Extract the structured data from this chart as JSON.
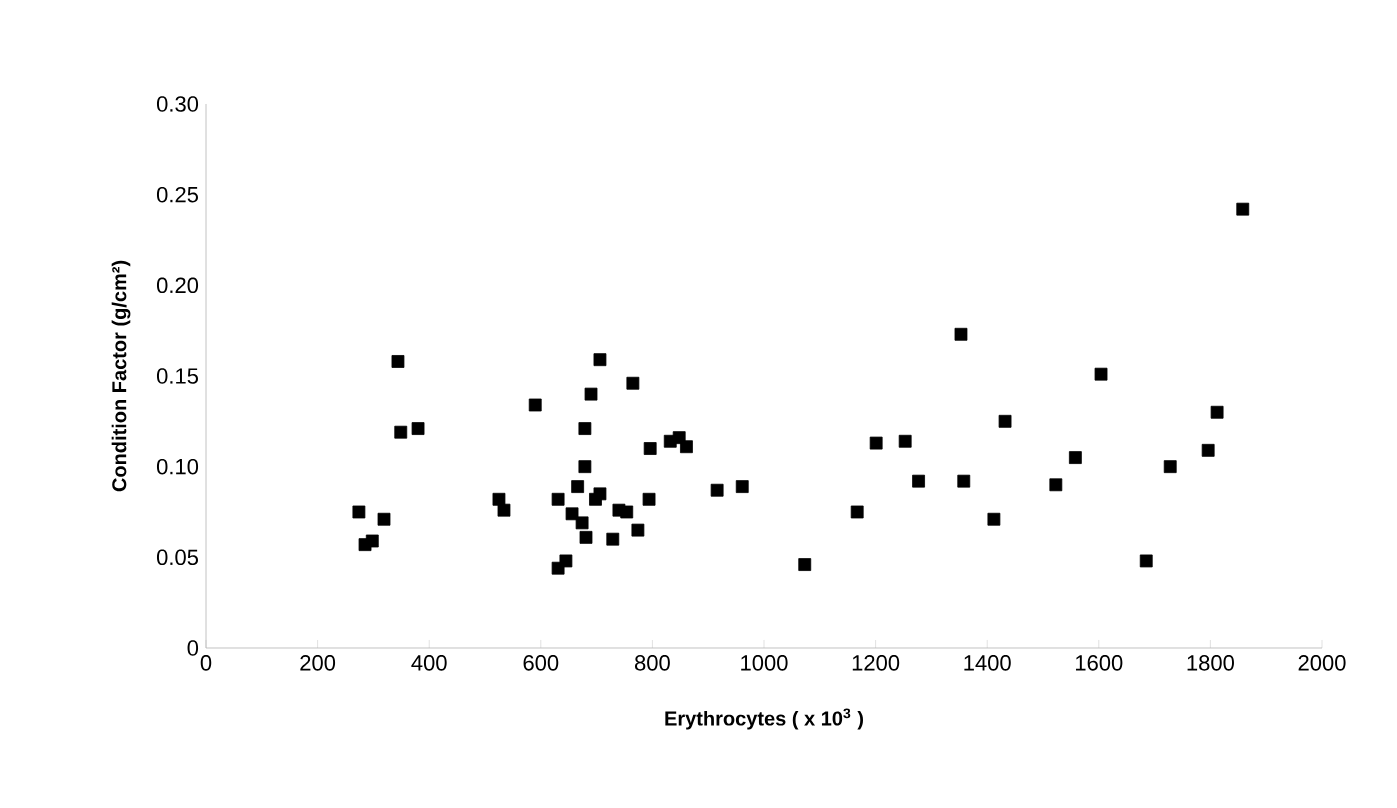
{
  "chart_data": {
    "type": "scatter",
    "xlabel": "Erythrocytes ( x 10$^{3}$ )",
    "ylabel": "Condition Factor (g/cm²)",
    "marker": "square",
    "grid": false,
    "xlim": [
      0,
      2000
    ],
    "xticks": [
      0,
      200,
      400,
      600,
      800,
      1000,
      1200,
      1400,
      1600,
      1800,
      2000
    ],
    "ylim": [
      0,
      0.3
    ],
    "yticks": [
      0,
      0.05,
      {
        "value": 0.1,
        "label": "0.10"
      },
      0.15,
      {
        "value": 0.2,
        "label": "0.20"
      },
      0.25,
      {
        "value": 0.3,
        "label": "0.30"
      }
    ],
    "series": [
      {
        "color": "#000000",
        "x": [
          274,
          285,
          319,
          298,
          344,
          349,
          380,
          525,
          534,
          590,
          631,
          631,
          645,
          656,
          666,
          679,
          679,
          674,
          681,
          690,
          698,
          706,
          706,
          729,
          740,
          754,
          774,
          765,
          794,
          796,
          832,
          848,
          861,
          916,
          961,
          1073,
          1167,
          1201,
          1253,
          1277,
          1353,
          1358,
          1412,
          1432,
          1523,
          1558,
          1604,
          1685,
          1728,
          1796,
          1812,
          1858
        ],
        "values": [
          0.075,
          0.057,
          0.071,
          0.059,
          0.158,
          0.119,
          0.121,
          0.082,
          0.076,
          0.134,
          0.082,
          0.044,
          0.048,
          0.074,
          0.089,
          0.121,
          0.1,
          0.069,
          0.061,
          0.14,
          0.082,
          0.085,
          0.159,
          0.06,
          0.076,
          0.075,
          0.065,
          0.146,
          0.082,
          0.11,
          0.114,
          0.116,
          0.111,
          0.087,
          0.089,
          0.046,
          0.075,
          0.113,
          0.114,
          0.092,
          0.173,
          0.092,
          0.071,
          0.125,
          0.09,
          0.105,
          0.151,
          0.048,
          0.1,
          0.109,
          0.13,
          0.242
        ]
      }
    ]
  }
}
